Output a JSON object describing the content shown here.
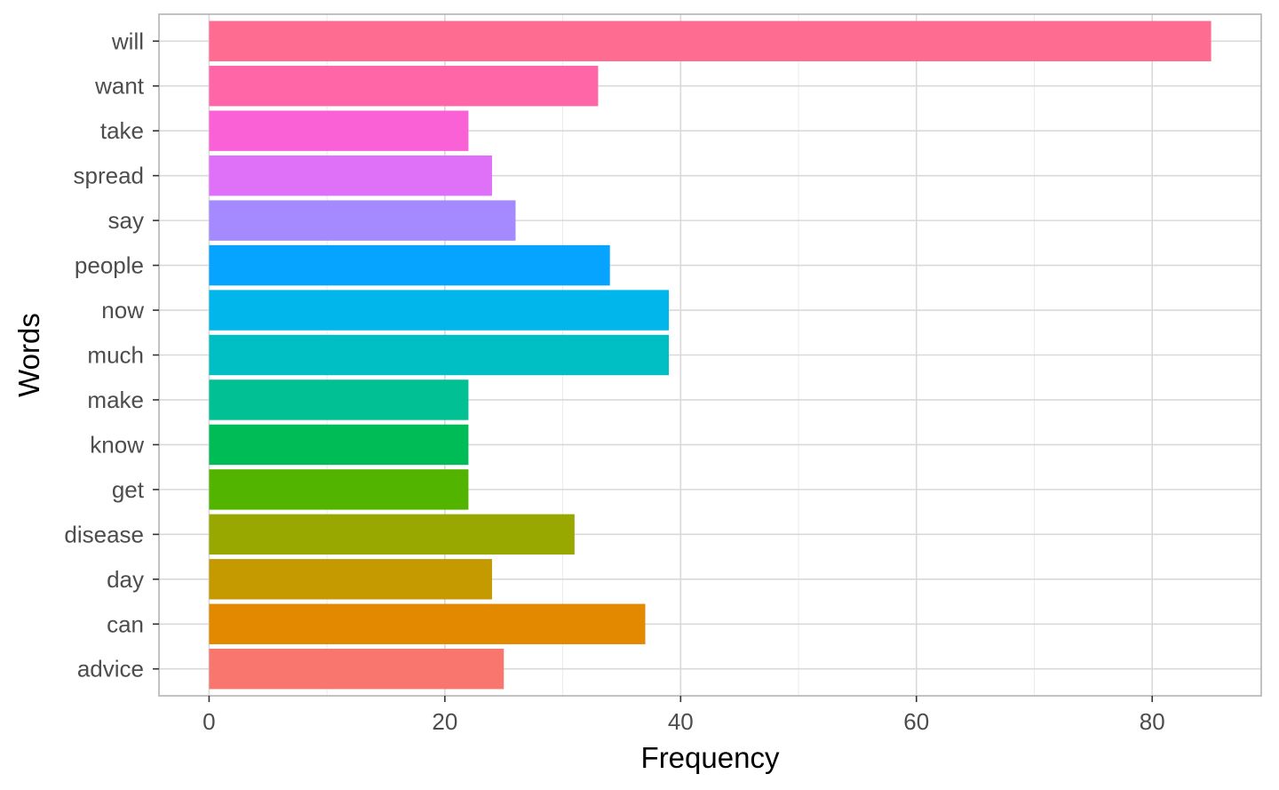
{
  "chart_data": {
    "type": "bar",
    "orientation": "horizontal",
    "title": "",
    "xlabel": "Frequency",
    "ylabel": "Words",
    "categories": [
      "advice",
      "can",
      "day",
      "disease",
      "get",
      "know",
      "make",
      "much",
      "now",
      "people",
      "say",
      "spread",
      "take",
      "want",
      "will"
    ],
    "values": [
      25,
      37,
      24,
      31,
      22,
      22,
      22,
      39,
      39,
      34,
      26,
      24,
      22,
      33,
      85
    ],
    "colors": [
      "#F8766D",
      "#E38900",
      "#C49A00",
      "#99A800",
      "#53B400",
      "#00BC56",
      "#00C094",
      "#00BFC4",
      "#00B6EB",
      "#06A4FF",
      "#A58AFF",
      "#DF70F8",
      "#FB61D7",
      "#FF66A8",
      "#FF6C91"
    ],
    "xlim": [
      -4.25,
      89.25
    ],
    "xticks": [
      0,
      20,
      40,
      60,
      80
    ],
    "xtick_labels": [
      "0",
      "20",
      "40",
      "60",
      "80"
    ],
    "grid": true,
    "legend": "none",
    "theme": {
      "panel_border": "#b3b3b3",
      "grid_major": "#d9d9d9",
      "grid_minor": "#ebebeb"
    }
  }
}
